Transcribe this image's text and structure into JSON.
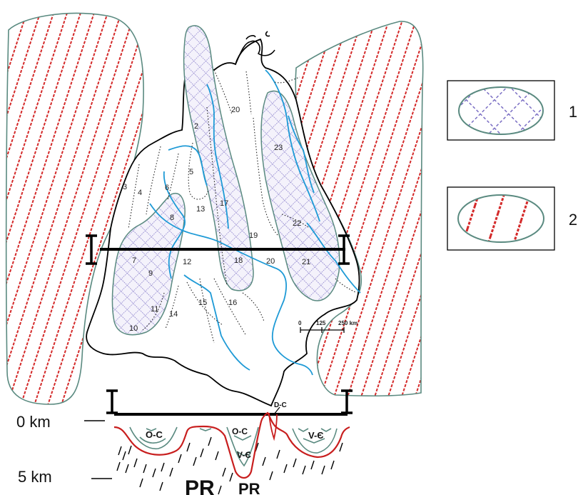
{
  "region_labels": [
    "2",
    "3",
    "4",
    "5",
    "6",
    "8",
    "7",
    "9",
    "10",
    "11",
    "12",
    "13",
    "14",
    "15",
    "16",
    "17",
    "18",
    "19",
    "20",
    "20",
    "21",
    "22",
    "23"
  ],
  "profile": {
    "start_label": "I",
    "end_label": "I"
  },
  "scale_bar": {
    "labels": [
      "0",
      "125",
      "250 km"
    ]
  },
  "legend": [
    {
      "number": "1",
      "pattern": "crosshatch",
      "color": "#7b6fc4"
    },
    {
      "number": "2",
      "pattern": "red-stripes",
      "color": "#d42a2a"
    }
  ],
  "section": {
    "depth_labels": [
      "0 km",
      "5 km"
    ],
    "unit_labels": [
      "D-C",
      "O-C",
      "O-C",
      "V-Є",
      "V-Є",
      "PR",
      "PR"
    ]
  },
  "colors": {
    "outline": "#5a8a80",
    "river": "#1e9ad6",
    "stripe": "#d42a2a",
    "hatch": "#7b6fc4"
  }
}
